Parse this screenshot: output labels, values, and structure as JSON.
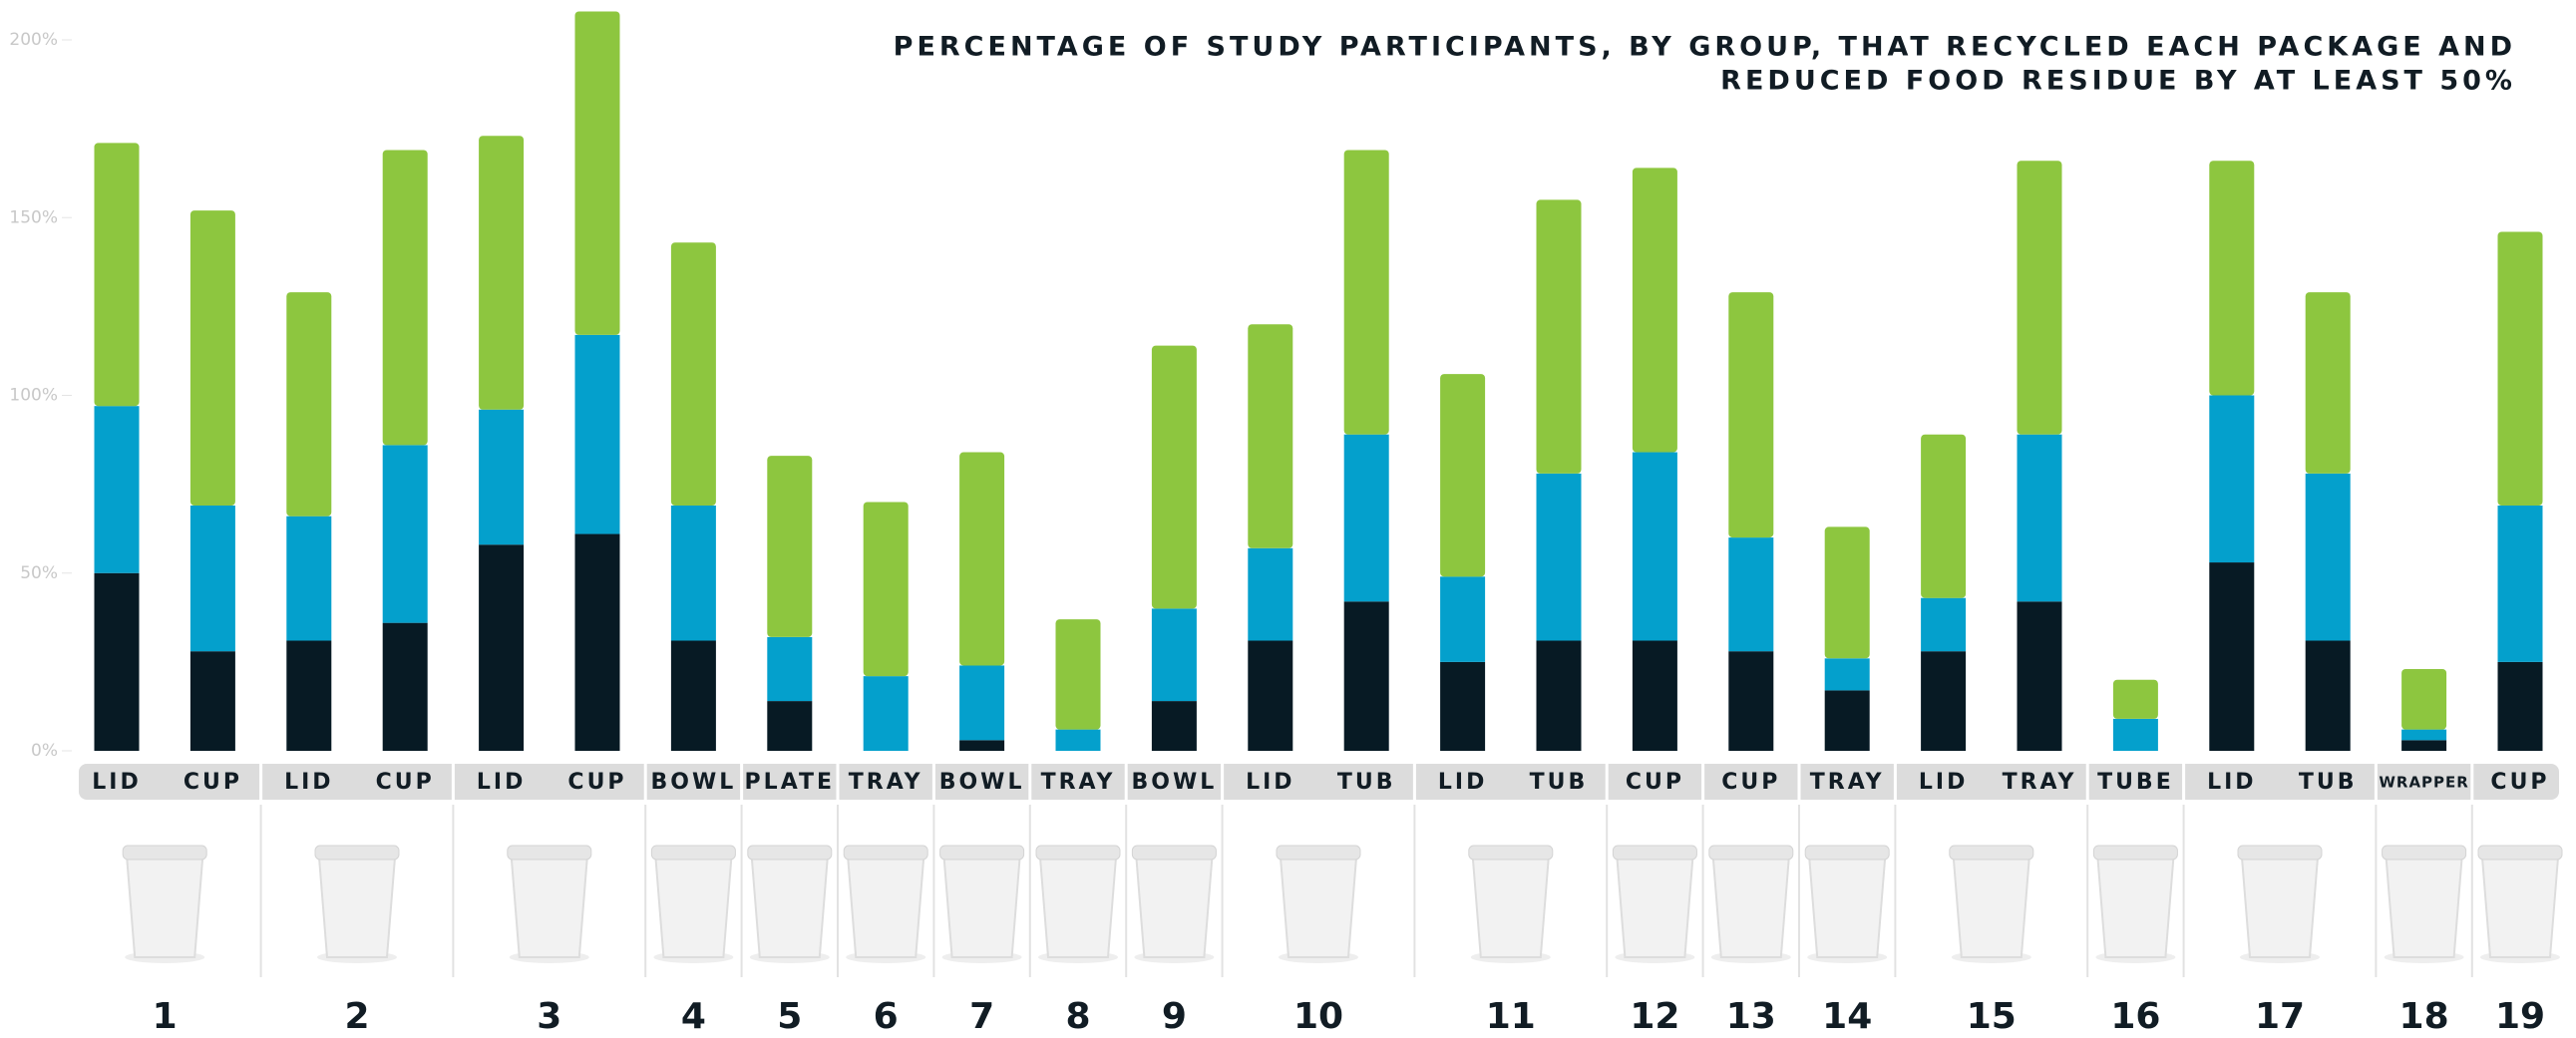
{
  "chart_data": {
    "type": "stacked_bar",
    "title": [
      "PERCENTAGE OF STUDY PARTICIPANTS, BY GROUP, THAT RECYCLED EACH PACKAGE AND",
      "REDUCED FOOD RESIDUE BY AT LEAST 50%"
    ],
    "categories": [
      "LID",
      "CUP",
      "LID",
      "CUP",
      "LID",
      "CUP",
      "BOWL",
      "PLATE",
      "TRAY",
      "BOWL",
      "TRAY",
      "BOWL",
      "LID",
      "TUB",
      "LID",
      "TUB",
      "CUP",
      "CUP",
      "TRAY",
      "LID",
      "TRAY",
      "TUBE",
      "LID",
      "TUB",
      "WRAPPER",
      "CUP"
    ],
    "group_labels": [
      "1",
      "2",
      "3",
      "4",
      "5",
      "6",
      "7",
      "8",
      "9",
      "10",
      "11",
      "12",
      "13",
      "14",
      "15",
      "16",
      "17",
      "18",
      "19"
    ],
    "series": [
      {
        "color": "#071a24",
        "values": [
          50,
          28,
          31,
          36,
          58,
          61,
          31,
          14,
          0,
          3,
          0,
          14,
          31,
          42,
          25,
          31,
          31,
          28,
          17,
          28,
          42,
          0,
          53,
          31,
          3,
          25
        ]
      },
      {
        "color": "#04a0cc",
        "values": [
          47,
          41,
          35,
          50,
          38,
          56,
          38,
          18,
          21,
          21,
          6,
          26,
          26,
          47,
          24,
          47,
          53,
          32,
          9,
          15,
          47,
          9,
          47,
          47,
          3,
          44
        ]
      },
      {
        "color": "#8dc63f",
        "values": [
          74,
          83,
          63,
          83,
          77,
          91,
          74,
          51,
          49,
          60,
          31,
          74,
          63,
          80,
          57,
          77,
          80,
          69,
          37,
          46,
          77,
          11,
          66,
          51,
          17,
          77
        ]
      }
    ],
    "ylim": [
      0,
      200
    ],
    "yticks": [
      {
        "value": 0,
        "label": "0%"
      },
      {
        "value": 50,
        "label": "50%"
      },
      {
        "value": 100,
        "label": "100%"
      },
      {
        "value": 150,
        "label": "150%"
      },
      {
        "value": 200,
        "label": "200%"
      }
    ],
    "grid": false
  }
}
